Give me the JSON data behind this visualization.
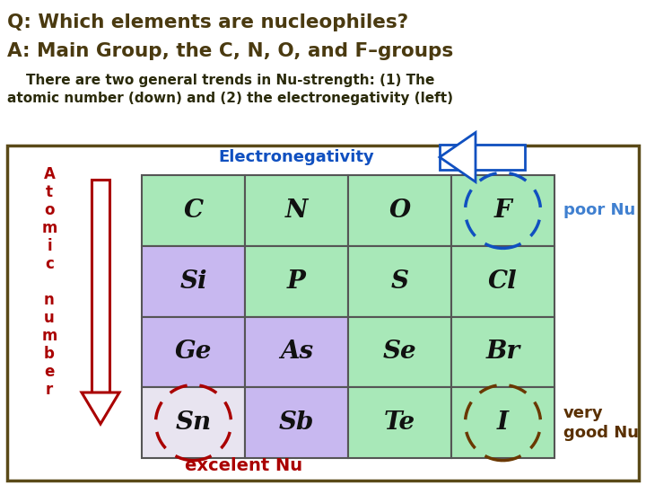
{
  "title_line1": "Q: Which elements are nucleophiles?",
  "title_line2": "A: Main Group, the C, N, O, and F–groups",
  "subtitle_line1": "    There are two general trends in Nu-strength: (1) The",
  "subtitle_line2": "atomic number (down) and (2) the electronegativity (left)",
  "title_color": "#4a3a10",
  "subtitle_color": "#2a2a0a",
  "bg_color": "#ffffff",
  "outer_box_color": "#5a4a18",
  "grid_elements": [
    [
      "C",
      "N",
      "O",
      "F"
    ],
    [
      "Si",
      "P",
      "S",
      "Cl"
    ],
    [
      "Ge",
      "As",
      "Se",
      "Br"
    ],
    [
      "Sn",
      "Sb",
      "Te",
      "I"
    ]
  ],
  "cell_colors": [
    [
      "#a8e8b8",
      "#a8e8b8",
      "#a8e8b8",
      "#a8e8b8"
    ],
    [
      "#c8b8f0",
      "#a8e8b8",
      "#a8e8b8",
      "#a8e8b8"
    ],
    [
      "#c8b8f0",
      "#c8b8f0",
      "#a8e8b8",
      "#a8e8b8"
    ],
    [
      "#e8e4f0",
      "#c8b8f0",
      "#a8e8b8",
      "#a8e8b8"
    ]
  ],
  "electronegativity_label": "Electronegativity",
  "electronegativity_color": "#1050c0",
  "atomic_number_color": "#aa0000",
  "arrow_down_color": "#aa0000",
  "arrow_left_color": "#1050c0",
  "poor_nu_text": "poor Nu",
  "poor_nu_color": "#4080d0",
  "very_good_nu_text": "very\ngood Nu",
  "very_good_nu_color": "#5a3000",
  "excelent_nu_text": "excelent Nu",
  "excelent_nu_color": "#aa0000",
  "F_circle_color": "#1050c0",
  "Sn_circle_color": "#aa0000",
  "I_circle_color": "#6a3800",
  "grid_line_color": "#555555",
  "elem_font_size": 20
}
